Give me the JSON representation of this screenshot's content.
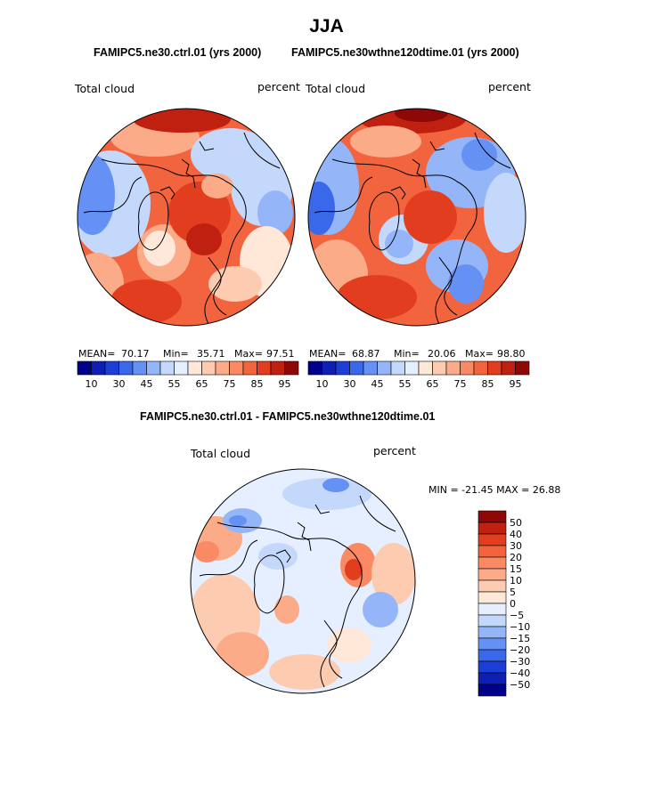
{
  "season": "JJA",
  "subtitle_left": "FAMIPC5.ne30.ctrl.01 (yrs 2000)",
  "subtitle_right": "FAMIPC5.ne30wthne120dtime.01 (yrs 2000)",
  "diff_title": "FAMIPC5.ne30.ctrl.01 - FAMIPC5.ne30wthne120dtime.01",
  "panels": {
    "left": {
      "variable": "Total cloud",
      "units": "percent",
      "stats": {
        "mean_label": "MEAN=",
        "mean": "70.17",
        "min_label": "Min=",
        "min": "35.71",
        "max_label": "Max=",
        "max": "97.51"
      }
    },
    "right": {
      "variable": "Total cloud",
      "units": "percent",
      "stats": {
        "mean_label": "MEAN=",
        "mean": "68.87",
        "min_label": "Min=",
        "min": "20.06",
        "max_label": "Max=",
        "max": "98.80"
      }
    },
    "diff": {
      "variable": "Total cloud",
      "units": "percent",
      "minmax": "MIN = -21.45 MAX =  26.88"
    }
  },
  "colorbar_main": {
    "tick_labels": [
      "10",
      "30",
      "45",
      "55",
      "65",
      "75",
      "85",
      "95"
    ],
    "colors": [
      "#000088",
      "#0e1fb4",
      "#1c3ed6",
      "#3a68ea",
      "#6691f4",
      "#94b6f8",
      "#c3d8fb",
      "#e6efff",
      "#ffe8d8",
      "#fdcbb0",
      "#fcab88",
      "#f98a63",
      "#f2643e",
      "#e23d1f",
      "#bf2010",
      "#8e0808"
    ]
  },
  "colorbar_diff": {
    "levels": [
      "50",
      "40",
      "30",
      "20",
      "15",
      "10",
      "5",
      "0",
      "−5",
      "−10",
      "−15",
      "−20",
      "−30",
      "−40",
      "−50"
    ],
    "colors": [
      "#8e0808",
      "#bf2010",
      "#e23d1f",
      "#f2643e",
      "#f98a63",
      "#fcab88",
      "#fdcbb0",
      "#ffe8d8",
      "#e6efff",
      "#c3d8fb",
      "#94b6f8",
      "#6691f4",
      "#3a68ea",
      "#1c3ed6",
      "#0e1fb4",
      "#000088"
    ]
  }
}
